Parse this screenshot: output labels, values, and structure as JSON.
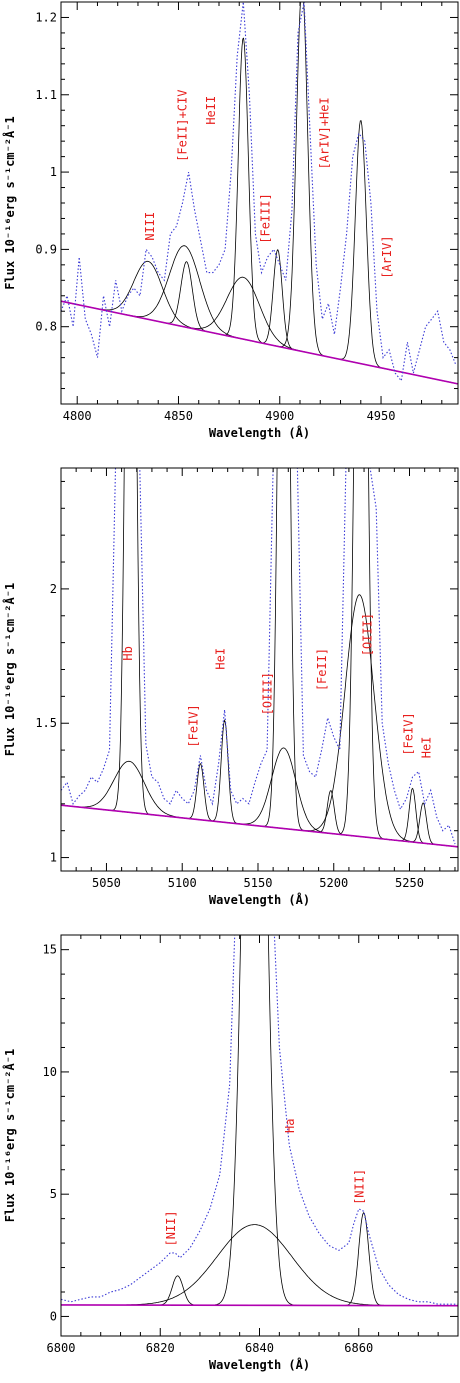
{
  "colors": {
    "observed": "#3b3bd6",
    "continuum": "#b000b0",
    "components": "#000000",
    "labels": "#e8201e"
  },
  "chart_data": [
    {
      "type": "line",
      "xlabel": "Wavelength (Å)",
      "ylabel": "Flux 10⁻¹⁶erg s⁻¹cm⁻²Å⁻1",
      "xlim": [
        4792,
        4988
      ],
      "ylim": [
        0.7,
        1.22
      ],
      "xticks": [
        4800,
        4850,
        4900,
        4950
      ],
      "xtick_labels": [
        "4800",
        "4850",
        "4900",
        "4950"
      ],
      "yticks": [
        0.8,
        0.9,
        1.0,
        1.1,
        1.2
      ],
      "ytick_labels": [
        "0.8",
        "0.9",
        "1",
        "1.1",
        "1.2"
      ],
      "continuum": {
        "name": "continuum",
        "x": [
          4792,
          4988
        ],
        "y": [
          0.833,
          0.726
        ]
      },
      "components": [
        {
          "center": 4835,
          "amplitude": 0.075,
          "sigma": 7.0
        },
        {
          "center": 4853,
          "amplitude": 0.105,
          "sigma": 7.5
        },
        {
          "center": 4854,
          "amplitude": 0.085,
          "sigma": 2.8
        },
        {
          "center": 4882,
          "amplitude": 0.39,
          "sigma": 2.5
        },
        {
          "center": 4882,
          "amplitude": 0.08,
          "sigma": 8.0
        },
        {
          "center": 4899,
          "amplitude": 0.125,
          "sigma": 2.2
        },
        {
          "center": 4911,
          "amplitude": 0.47,
          "sigma": 2.8
        },
        {
          "center": 4940,
          "amplitude": 0.315,
          "sigma": 2.7
        }
      ],
      "observed": {
        "name": "observed",
        "x": [
          4792,
          4795,
          4798,
          4801,
          4804,
          4807,
          4810,
          4813,
          4816,
          4819,
          4822,
          4825,
          4828,
          4831,
          4834,
          4837,
          4840,
          4843,
          4846,
          4849,
          4852,
          4855,
          4858,
          4861,
          4864,
          4867,
          4870,
          4873,
          4876,
          4879,
          4882,
          4885,
          4888,
          4891,
          4894,
          4897,
          4900,
          4903,
          4906,
          4909,
          4912,
          4915,
          4918,
          4921,
          4924,
          4927,
          4930,
          4933,
          4936,
          4939,
          4942,
          4945,
          4948,
          4951,
          4954,
          4957,
          4960,
          4963,
          4966,
          4969,
          4972,
          4975,
          4978,
          4981,
          4984,
          4987
        ],
        "y": [
          0.82,
          0.84,
          0.8,
          0.89,
          0.81,
          0.79,
          0.76,
          0.84,
          0.8,
          0.86,
          0.82,
          0.84,
          0.85,
          0.84,
          0.9,
          0.89,
          0.87,
          0.86,
          0.92,
          0.93,
          0.96,
          1.0,
          0.95,
          0.91,
          0.87,
          0.87,
          0.88,
          0.9,
          1.0,
          1.15,
          1.22,
          1.1,
          0.92,
          0.87,
          0.89,
          0.9,
          0.88,
          0.86,
          0.95,
          1.18,
          1.22,
          1.05,
          0.88,
          0.81,
          0.83,
          0.79,
          0.85,
          0.92,
          1.02,
          1.05,
          1.04,
          0.96,
          0.82,
          0.76,
          0.77,
          0.74,
          0.73,
          0.78,
          0.74,
          0.77,
          0.8,
          0.81,
          0.82,
          0.78,
          0.77,
          0.75
        ]
      },
      "annotations": [
        {
          "text": "NIII",
          "x": 4838,
          "y": 0.93
        },
        {
          "text": "[FeII]+CIV",
          "x": 4854,
          "y": 1.06
        },
        {
          "text": "HeII",
          "x": 4868,
          "y": 1.08
        },
        {
          "text": "[FeIII]",
          "x": 4895,
          "y": 0.94
        },
        {
          "text": "[ArIV]+HeI",
          "x": 4924,
          "y": 1.05
        },
        {
          "text": "[ArIV]",
          "x": 4955,
          "y": 0.89
        }
      ]
    },
    {
      "type": "line",
      "xlabel": "Wavelength (Å)",
      "ylabel": "Flux 10⁻¹⁶erg s⁻¹cm⁻²Å⁻1",
      "xlim": [
        5020,
        5282
      ],
      "ylim": [
        0.95,
        2.45
      ],
      "xticks": [
        5050,
        5100,
        5150,
        5200,
        5250
      ],
      "xtick_labels": [
        "5050",
        "5100",
        "5150",
        "5200",
        "5250"
      ],
      "yticks": [
        1.0,
        1.5,
        2.0
      ],
      "ytick_labels": [
        "1",
        "1.5",
        "2"
      ],
      "continuum": {
        "name": "continuum",
        "x": [
          5020,
          5282
        ],
        "y": [
          1.195,
          1.04
        ]
      },
      "components": [
        {
          "center": 5065,
          "amplitude": 0.19,
          "sigma": 10.0
        },
        {
          "center": 5066,
          "amplitude": 3.5,
          "sigma": 3.0
        },
        {
          "center": 5112,
          "amplitude": 0.21,
          "sigma": 2.3
        },
        {
          "center": 5128,
          "amplitude": 0.38,
          "sigma": 2.3
        },
        {
          "center": 5167,
          "amplitude": 0.3,
          "sigma": 8.0
        },
        {
          "center": 5167,
          "amplitude": 3.5,
          "sigma": 3.2
        },
        {
          "center": 5198,
          "amplitude": 0.16,
          "sigma": 2.3
        },
        {
          "center": 5217,
          "amplitude": 0.9,
          "sigma": 9.5
        },
        {
          "center": 5218,
          "amplitude": 3.5,
          "sigma": 3.6
        },
        {
          "center": 5252,
          "amplitude": 0.2,
          "sigma": 2.2
        },
        {
          "center": 5259,
          "amplitude": 0.15,
          "sigma": 2.2
        }
      ],
      "observed": {
        "name": "observed",
        "x": [
          5020,
          5024,
          5028,
          5032,
          5036,
          5040,
          5044,
          5048,
          5052,
          5056,
          5060,
          5064,
          5068,
          5072,
          5076,
          5080,
          5084,
          5088,
          5092,
          5096,
          5100,
          5104,
          5108,
          5112,
          5116,
          5120,
          5124,
          5128,
          5132,
          5136,
          5140,
          5144,
          5148,
          5152,
          5156,
          5160,
          5164,
          5168,
          5172,
          5176,
          5180,
          5184,
          5188,
          5192,
          5196,
          5200,
          5204,
          5208,
          5212,
          5216,
          5220,
          5224,
          5228,
          5232,
          5236,
          5240,
          5244,
          5248,
          5252,
          5256,
          5260,
          5264,
          5268,
          5272,
          5276,
          5280
        ],
        "y": [
          1.25,
          1.28,
          1.2,
          1.23,
          1.25,
          1.3,
          1.28,
          1.33,
          1.4,
          2.45,
          2.45,
          2.45,
          2.45,
          2.45,
          1.42,
          1.3,
          1.28,
          1.22,
          1.2,
          1.25,
          1.22,
          1.2,
          1.25,
          1.38,
          1.25,
          1.2,
          1.35,
          1.55,
          1.25,
          1.2,
          1.22,
          1.2,
          1.28,
          1.35,
          1.4,
          2.45,
          2.45,
          2.45,
          2.45,
          2.45,
          1.38,
          1.32,
          1.3,
          1.4,
          1.52,
          1.45,
          1.4,
          2.45,
          2.45,
          2.45,
          2.45,
          2.45,
          2.3,
          1.5,
          1.35,
          1.25,
          1.18,
          1.22,
          1.3,
          1.32,
          1.2,
          1.25,
          1.15,
          1.1,
          1.12,
          1.05
        ]
      },
      "annotations": [
        {
          "text": "Hb",
          "x": 5067,
          "y": 1.76
        },
        {
          "text": "[FeIV]",
          "x": 5110,
          "y": 1.49
        },
        {
          "text": "HeI",
          "x": 5128,
          "y": 1.74
        },
        {
          "text": "[OIII]",
          "x": 5159,
          "y": 1.61
        },
        {
          "text": "[FeII]",
          "x": 5195,
          "y": 1.7
        },
        {
          "text": "[OIII]",
          "x": 5225,
          "y": 1.83
        },
        {
          "text": "[FeIV]",
          "x": 5252,
          "y": 1.46
        },
        {
          "text": "HeI",
          "x": 5264,
          "y": 1.41
        }
      ]
    },
    {
      "type": "line",
      "xlabel": "Wavelength (Å)",
      "ylabel": "Flux 10⁻¹⁶erg s⁻¹cm⁻²Å⁻1",
      "xlim": [
        6800,
        6880
      ],
      "ylim": [
        -0.8,
        15.6
      ],
      "xticks": [
        6800,
        6820,
        6840,
        6860
      ],
      "xtick_labels": [
        "6800",
        "6820",
        "6840",
        "6860"
      ],
      "yticks": [
        0,
        5,
        10,
        15
      ],
      "ytick_labels": [
        "0",
        "5",
        "10",
        "15"
      ],
      "continuum": {
        "name": "continuum",
        "x": [
          6800,
          6880
        ],
        "y": [
          0.47,
          0.44
        ]
      },
      "components": [
        {
          "center": 6823.5,
          "amplitude": 1.2,
          "sigma": 1.1
        },
        {
          "center": 6839,
          "amplitude": 3.3,
          "sigma": 7.5
        },
        {
          "center": 6839,
          "amplitude": 40,
          "sigma": 2.0
        },
        {
          "center": 6861,
          "amplitude": 3.8,
          "sigma": 1.0
        }
      ],
      "observed": {
        "name": "observed",
        "x": [
          6800,
          6802,
          6804,
          6806,
          6808,
          6810,
          6812,
          6814,
          6816,
          6818,
          6820,
          6822,
          6823,
          6824,
          6826,
          6828,
          6830,
          6832,
          6834,
          6835,
          6836,
          6837,
          6838,
          6840,
          6841,
          6842,
          6843,
          6844,
          6846,
          6848,
          6850,
          6852,
          6854,
          6856,
          6858,
          6859,
          6860,
          6861,
          6862,
          6864,
          6866,
          6868,
          6870,
          6872,
          6874,
          6876,
          6878,
          6880
        ],
        "y": [
          0.7,
          0.6,
          0.7,
          0.8,
          0.8,
          1.0,
          1.1,
          1.3,
          1.6,
          1.9,
          2.2,
          2.6,
          2.6,
          2.4,
          2.8,
          3.5,
          4.4,
          5.8,
          9.5,
          15.6,
          15.6,
          15.6,
          15.6,
          15.6,
          15.6,
          15.6,
          15.6,
          11,
          7.0,
          5.2,
          4.1,
          3.4,
          2.9,
          2.7,
          3.0,
          3.8,
          4.4,
          4.3,
          3.4,
          2.0,
          1.3,
          0.9,
          0.7,
          0.6,
          0.6,
          0.5,
          0.5,
          0.5
        ]
      },
      "annotations": [
        {
          "text": "Ha",
          "x": 6847,
          "y": 7.8
        },
        {
          "text": "[NII]",
          "x": 6823,
          "y": 3.6
        },
        {
          "text": "[NII]",
          "x": 6861,
          "y": 5.3
        }
      ]
    }
  ]
}
